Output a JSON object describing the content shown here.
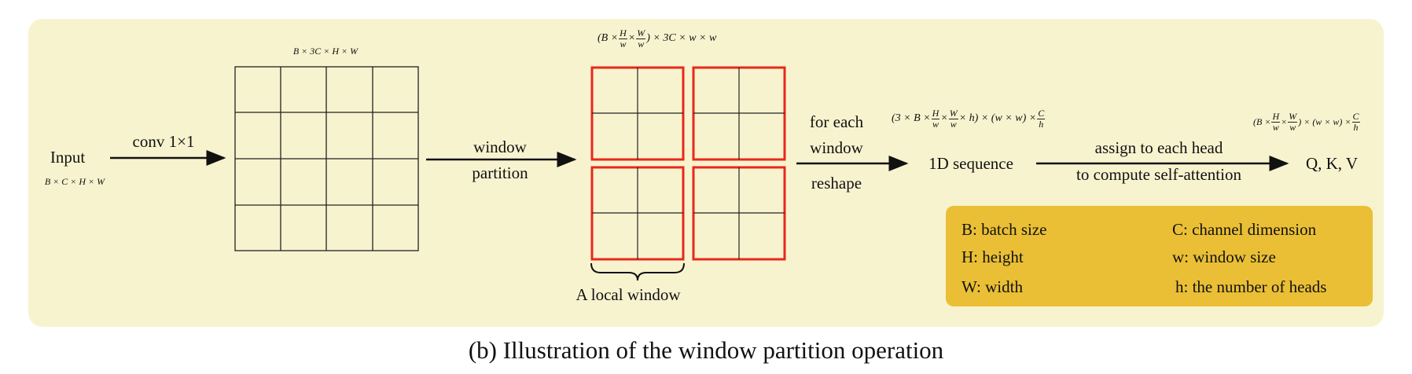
{
  "input_label": "Input",
  "input_dims": "B × C × H × W",
  "conv_label": "conv 1×1",
  "grid_dims": "B × 3C × H × W",
  "window_partition": [
    "window",
    "partition"
  ],
  "partition_dims": {
    "open": "(B ×",
    "H": "H",
    "w1": "w",
    "times1": "×",
    "W": "W",
    "w2": "w",
    "close": ") × 3C  ×  w × w"
  },
  "local_window_label": "A local window",
  "for_each_window": [
    "for each",
    "window"
  ],
  "reshape_label": "reshape",
  "seq_dims": {
    "open": "(3 × B ×",
    "H": "H",
    "w1": "w",
    "mid1": "×",
    "W": "W",
    "w2": "w",
    "mid2": "× h) × (w × w) ×",
    "C": "C",
    "h": "h"
  },
  "sequence_label": "1D sequence",
  "assign_label": [
    "assign to each head",
    "to compute self-attention"
  ],
  "qkv_dims": {
    "open": "(B ×",
    "H": "H",
    "w1": "w",
    "mid1": "×",
    "W": "W",
    "w2": "w",
    "mid2": ") × (w × w) ×",
    "C": "C",
    "h": "h"
  },
  "qkv_label": "Q, K, V",
  "legend": {
    "b": "B: batch size",
    "c": "C: channel dimension",
    "h": "H: height",
    "w": "w: window size",
    "W": "W: width",
    "heads": "h: the number of heads"
  },
  "caption": "(b) Illustration of the window partition operation",
  "colors": {
    "panel": "#f8f3cf",
    "legend": "#eabf35",
    "window_border": "#e8281b"
  }
}
